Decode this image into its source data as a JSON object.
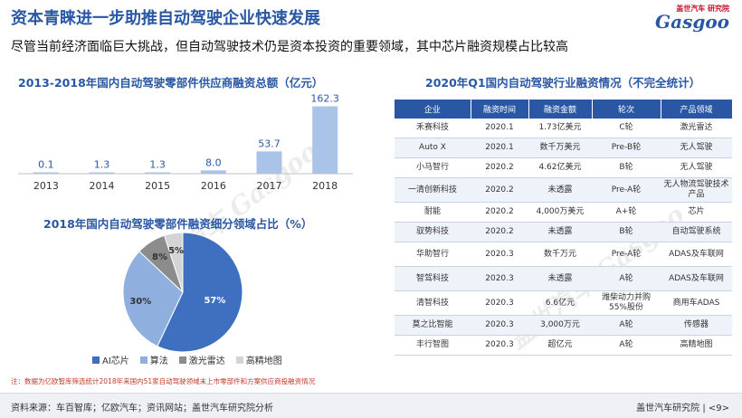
{
  "header": {
    "title": "资本青睐进一步助推自动驾驶企业快速发展",
    "logo_brand": "盖世汽车 研究院",
    "logo_word": "Gasgoo",
    "subtitle": "尽管当前经济面临巨大挑战，但自动驾驶技术仍是资本投资的重要领域，其中芯片融资规模占比较高"
  },
  "watermark": "盖世汽车 Gasgoo",
  "bar_section": {
    "title": "2013-2018年国内自动驾驶零部件供应商融资总额（亿元）"
  },
  "pie_section": {
    "title": "2018年国内自动驾驶零部件融资细分领域占比（%）"
  },
  "table_section": {
    "title": "2020年Q1国内自动驾驶行业融资情况（不完全统计）",
    "columns": [
      "企业",
      "融资时间",
      "融资金额",
      "轮次",
      "产品领域"
    ],
    "rows": [
      [
        "禾赛科技",
        "2020.1",
        "1.73亿美元",
        "C轮",
        "激光雷达"
      ],
      [
        "Auto X",
        "2020.1",
        "数千万美元",
        "Pre-B轮",
        "无人驾驶"
      ],
      [
        "小马智行",
        "2020.2",
        "4.62亿美元",
        "B轮",
        "无人驾驶"
      ],
      [
        "一清创新科技",
        "2020.2",
        "未透露",
        "Pre-A轮",
        "无人物流驾驶技术产品"
      ],
      [
        "耐能",
        "2020.2",
        "4,000万美元",
        "A+轮",
        "芯片"
      ],
      [
        "驭势科技",
        "2020.2",
        "未透露",
        "B轮",
        "自动驾驶系统"
      ],
      [
        "华助智行",
        "2020.3",
        "数千万元",
        "Pre-A轮",
        "ADAS及车联网"
      ],
      [
        "智驾科技",
        "2020.3",
        "未透露",
        "A轮",
        "ADAS及车联网"
      ],
      [
        "清智科技",
        "2020.3",
        "6.6亿元",
        "潍柴动力并购55%股份",
        "商用车ADAS"
      ],
      [
        "莫之比智能",
        "2020.3",
        "3,000万元",
        "A轮",
        "传感器"
      ],
      [
        "丰行智图",
        "2020.3",
        "超亿元",
        "A轮",
        "高精地图"
      ]
    ]
  },
  "note": "注：数据为亿欧智库筛选统计2018年来国内51家自动驾驶领域末上市零部件和方案供应商投融资情况",
  "footer": {
    "source": "资料来源：车百智库；亿欧汽车；资讯网站；盖世汽车研究院分析",
    "org": "盖世汽车研究院",
    "page": "<9>"
  },
  "colors": {
    "accent": "#2a57a4",
    "bar": "#a9c4e8",
    "pie": [
      "#3f6fbf",
      "#8fb0de",
      "#8c8c8c",
      "#d4d4d4"
    ]
  },
  "chart_data": [
    {
      "type": "bar",
      "title": "2013-2018年国内自动驾驶零部件供应商融资总额（亿元）",
      "categories": [
        "2013",
        "2014",
        "2015",
        "2016",
        "2017",
        "2018"
      ],
      "values": [
        0.1,
        1.3,
        1.3,
        8.0,
        53.7,
        162.3
      ],
      "value_labels": [
        "0.1",
        "1.3",
        "1.3",
        "8.0",
        "53.7",
        "162.3"
      ],
      "ylim": [
        0,
        170
      ],
      "xlabel": "",
      "ylabel": ""
    },
    {
      "type": "pie",
      "title": "2018年国内自动驾驶零部件融资细分领域占比（%）",
      "labels": [
        "AI芯片",
        "算法",
        "激光雷达",
        "高精地图"
      ],
      "values": [
        57,
        30,
        8,
        5
      ],
      "value_labels": [
        "57%",
        "30%",
        "8%",
        "5%"
      ],
      "legend": "bottom"
    }
  ]
}
